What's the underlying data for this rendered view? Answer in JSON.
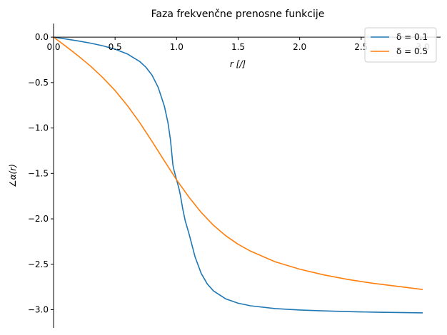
{
  "chart_data": {
    "type": "line",
    "title": "Faza frekvenčne prenosne funkcije",
    "xlabel": "r [/]",
    "ylabel": "∠α(r)",
    "xlim": [
      0,
      3.0
    ],
    "ylim": [
      -3.2,
      0.15
    ],
    "xticks": [
      0.0,
      0.5,
      1.0,
      1.5,
      2.0,
      2.5,
      3.0
    ],
    "xtick_labels": [
      "0.0",
      "0.5",
      "1.0",
      "1.5",
      "2.0",
      "2.5",
      "3.0"
    ],
    "yticks": [
      0.0,
      -0.5,
      -1.0,
      -1.5,
      -2.0,
      -2.5,
      -3.0
    ],
    "ytick_labels": [
      "0.0",
      "−0.5",
      "−1.0",
      "−1.5",
      "−2.0",
      "−2.5",
      "−3.0"
    ],
    "grid": false,
    "legend_position": "top-right",
    "series": [
      {
        "name": "δ = 0.1",
        "color": "#1f77b4",
        "x": [
          0.0,
          0.1,
          0.2,
          0.3,
          0.4,
          0.5,
          0.6,
          0.7,
          0.75,
          0.8,
          0.85,
          0.9,
          0.93,
          0.95,
          0.97,
          0.98,
          1.0,
          1.02,
          1.03,
          1.05,
          1.07,
          1.1,
          1.15,
          1.2,
          1.25,
          1.3,
          1.4,
          1.5,
          1.6,
          1.8,
          2.0,
          2.2,
          2.4,
          2.6,
          2.8,
          3.0
        ],
        "y": [
          0.0,
          -0.0202,
          -0.0416,
          -0.0658,
          -0.095,
          -0.1326,
          -0.1853,
          -0.2679,
          -0.3302,
          -0.4182,
          -0.5518,
          -0.7567,
          -0.9432,
          -1.1303,
          -1.4064,
          -1.4703,
          -1.5708,
          -1.6716,
          -1.7352,
          -1.8914,
          -2.0212,
          -2.1599,
          -2.4185,
          -2.6014,
          -2.7181,
          -2.7935,
          -2.8817,
          -2.9283,
          -2.9569,
          -2.9877,
          -3.0032,
          -3.0135,
          -3.0213,
          -3.0269,
          -3.031,
          -3.0344
        ]
      },
      {
        "name": "δ = 0.5",
        "color": "#ff7f0e",
        "x": [
          0.0,
          0.1,
          0.2,
          0.3,
          0.4,
          0.5,
          0.6,
          0.7,
          0.8,
          0.9,
          1.0,
          1.1,
          1.2,
          1.3,
          1.4,
          1.5,
          1.6,
          1.8,
          2.0,
          2.2,
          2.4,
          2.6,
          2.8,
          3.0
        ],
        "y": [
          0.0,
          -0.1007,
          -0.2058,
          -0.3183,
          -0.4447,
          -0.588,
          -0.7532,
          -0.94,
          -1.147,
          -1.3604,
          -1.5708,
          -1.7602,
          -1.9296,
          -2.0715,
          -2.1867,
          -2.2794,
          -2.355,
          -2.472,
          -2.5536,
          -2.6178,
          -2.6687,
          -2.7103,
          -2.7432,
          -2.7778
        ]
      }
    ]
  }
}
